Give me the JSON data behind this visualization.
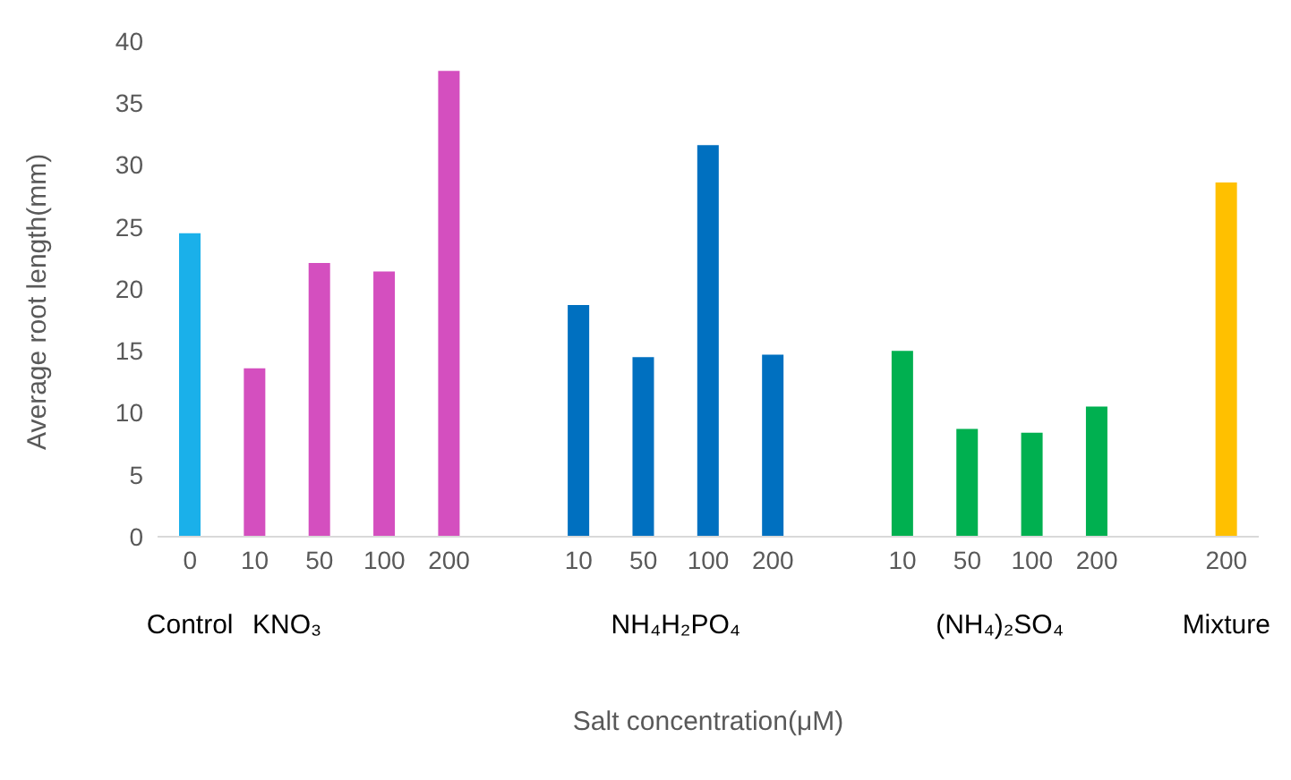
{
  "chart_data": {
    "type": "bar",
    "xlabel": "Salt concentration(μM)",
    "ylabel": "Average root length(mm)",
    "categories": [
      "0",
      "10",
      "50",
      "100",
      "200",
      null,
      "10",
      "50",
      "100",
      "200",
      null,
      "10",
      "50",
      "100",
      "200",
      null,
      "200"
    ],
    "values": [
      24.5,
      13.6,
      22.1,
      21.4,
      37.6,
      null,
      18.7,
      14.5,
      31.6,
      14.7,
      null,
      15.0,
      8.7,
      8.4,
      10.5,
      null,
      28.6
    ],
    "colors": [
      "#1ab0ea",
      "#d44fbf",
      "#d44fbf",
      "#d44fbf",
      "#d44fbf",
      "#ffffff",
      "#0070c0",
      "#0070c0",
      "#0070c0",
      "#0070c0",
      "#ffffff",
      "#00b050",
      "#00b050",
      "#00b050",
      "#00b050",
      "#ffffff",
      "#ffc000"
    ],
    "ylim": [
      0,
      40
    ],
    "yticks": [
      0,
      5,
      10,
      15,
      20,
      25,
      30,
      35,
      40
    ],
    "grid": false,
    "legend": false,
    "annotations": [
      "Control",
      "KNO₃",
      "NH₄H₂PO₄",
      "(NH₄)₂SO₄",
      "Mixture"
    ]
  }
}
